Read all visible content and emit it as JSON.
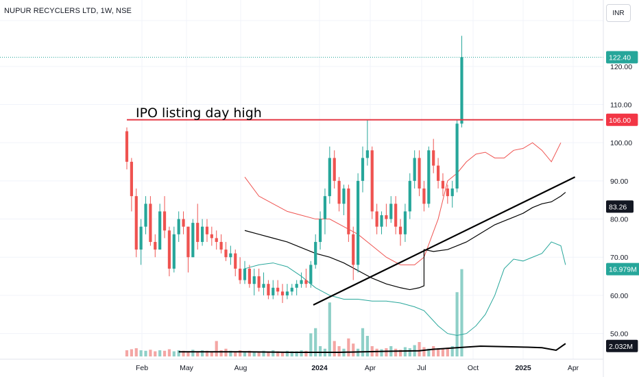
{
  "title": "NUPUR RECYCLERS LTD, 1W, NSE",
  "currency": "INR",
  "annotation": "IPO listing day high",
  "colors": {
    "up": "#26a69a",
    "down": "#ef5350",
    "band_upper": "#ef5350",
    "band_lower": "#26a69a",
    "basis": "#000000",
    "hline": "#e53945",
    "volume_up": "#8fd0c8",
    "volume_down": "#f4a6a4"
  },
  "price_labels": [
    {
      "text": "122.40",
      "value": 122.4,
      "bg": "#26a69a",
      "fg": "#ffffff"
    },
    {
      "text": "106.00",
      "value": 106.0,
      "bg": "#f23645",
      "fg": "#ffffff"
    },
    {
      "text": "83.26",
      "value": 83.26,
      "bg": "#131722",
      "fg": "#ffffff"
    },
    {
      "text": "16.979M",
      "value": 16.979,
      "bg": "#26a69a",
      "fg": "#ffffff",
      "pane": "volume"
    },
    {
      "text": "2.032M",
      "value": 2.032,
      "bg": "#131722",
      "fg": "#ffffff",
      "pane": "volume"
    }
  ],
  "chart_data": {
    "type": "candlestick",
    "interval": "1W",
    "xlabels": [
      "Feb",
      "May",
      "Aug",
      "2024",
      "Apr",
      "Jul",
      "Oct",
      "2025",
      "Apr"
    ],
    "ylabels": [
      "50.00",
      "60.00",
      "70.00",
      "80.00",
      "90.00",
      "100.00",
      "110.00",
      "120.00"
    ],
    "ylim": [
      44,
      132
    ],
    "last_price": 122.4,
    "horizontal_line": 106.0,
    "trendline": [
      [
        0,
        57.5
      ],
      [
        95,
        91
      ]
    ],
    "candles": [
      [
        103,
        104,
        93,
        95
      ],
      [
        95,
        96,
        82,
        86
      ],
      [
        86,
        88,
        70,
        72
      ],
      [
        72,
        80,
        68,
        78
      ],
      [
        78,
        86,
        76,
        84
      ],
      [
        84,
        86,
        73,
        74
      ],
      [
        74,
        76,
        70,
        72
      ],
      [
        72,
        84,
        72,
        82
      ],
      [
        82,
        86,
        75,
        77
      ],
      [
        77,
        78,
        65,
        67
      ],
      [
        67,
        78,
        66,
        76
      ],
      [
        76,
        82,
        74,
        80
      ],
      [
        80,
        82,
        76,
        78
      ],
      [
        78,
        78,
        66,
        70
      ],
      [
        70,
        80,
        70,
        79
      ],
      [
        79,
        84,
        72,
        74
      ],
      [
        74,
        80,
        73,
        78
      ],
      [
        78,
        80,
        74,
        76
      ],
      [
        76,
        78,
        73,
        75
      ],
      [
        75,
        77,
        72,
        74
      ],
      [
        74,
        76,
        71,
        72
      ],
      [
        72,
        74,
        69,
        70
      ],
      [
        70,
        73,
        68,
        71
      ],
      [
        71,
        72,
        65,
        67
      ],
      [
        67,
        70,
        63,
        64
      ],
      [
        64,
        69,
        63,
        67
      ],
      [
        67,
        68,
        62,
        63
      ],
      [
        63,
        67,
        60,
        65
      ],
      [
        65,
        67,
        61,
        62
      ],
      [
        62,
        66,
        60,
        63
      ],
      [
        63,
        64,
        59,
        60
      ],
      [
        60,
        64,
        59,
        62
      ],
      [
        62,
        64,
        60,
        61
      ],
      [
        61,
        63,
        58,
        60
      ],
      [
        60,
        63,
        59,
        61
      ],
      [
        61,
        63,
        60,
        62
      ],
      [
        62,
        64,
        60,
        63
      ],
      [
        63,
        66,
        62,
        64
      ],
      [
        64,
        67,
        62,
        63
      ],
      [
        63,
        69,
        62,
        68
      ],
      [
        68,
        76,
        67,
        74
      ],
      [
        74,
        82,
        72,
        80
      ],
      [
        80,
        88,
        76,
        86
      ],
      [
        86,
        99,
        84,
        96
      ],
      [
        96,
        98,
        88,
        90
      ],
      [
        90,
        91,
        82,
        84
      ],
      [
        84,
        89,
        81,
        88
      ],
      [
        88,
        89,
        74,
        76
      ],
      [
        76,
        78,
        64,
        68
      ],
      [
        68,
        92,
        66,
        90
      ],
      [
        90,
        99,
        87,
        96
      ],
      [
        96,
        106,
        94,
        98
      ],
      [
        98,
        99,
        80,
        82
      ],
      [
        82,
        84,
        76,
        78
      ],
      [
        78,
        82,
        76,
        81
      ],
      [
        81,
        84,
        78,
        80
      ],
      [
        80,
        86,
        79,
        84
      ],
      [
        84,
        86,
        76,
        78
      ],
      [
        78,
        80,
        73,
        76
      ],
      [
        76,
        84,
        74,
        82
      ],
      [
        82,
        92,
        80,
        90
      ],
      [
        90,
        98,
        88,
        96
      ],
      [
        96,
        98,
        86,
        88
      ],
      [
        88,
        90,
        82,
        84
      ],
      [
        84,
        99,
        83,
        98
      ],
      [
        98,
        101,
        92,
        94
      ],
      [
        94,
        96,
        88,
        90
      ],
      [
        90,
        92,
        86,
        88
      ],
      [
        88,
        89,
        84,
        86
      ],
      [
        86,
        90,
        83,
        88
      ],
      [
        88,
        106,
        87,
        105
      ],
      [
        105,
        128,
        104,
        122.4
      ]
    ],
    "bollinger_upper": [
      [
        25,
        91
      ],
      [
        28,
        86
      ],
      [
        31,
        84
      ],
      [
        34,
        82
      ],
      [
        37,
        81
      ],
      [
        40,
        80
      ],
      [
        43,
        80
      ],
      [
        46,
        78
      ],
      [
        49,
        76
      ],
      [
        52,
        73
      ],
      [
        55,
        70
      ],
      [
        58,
        68
      ],
      [
        61,
        68
      ],
      [
        63,
        70
      ],
      [
        66,
        80
      ],
      [
        68,
        90
      ],
      [
        70,
        92
      ],
      [
        72,
        95
      ],
      [
        74,
        97
      ],
      [
        76,
        97.5
      ],
      [
        78,
        96
      ],
      [
        80,
        96
      ],
      [
        82,
        98
      ],
      [
        84,
        98.5
      ],
      [
        86,
        100
      ],
      [
        88,
        98
      ],
      [
        90,
        95
      ],
      [
        92,
        100
      ]
    ],
    "bollinger_basis": [
      [
        25,
        77
      ],
      [
        28,
        76
      ],
      [
        31,
        75
      ],
      [
        34,
        74
      ],
      [
        37,
        72.5
      ],
      [
        40,
        71
      ],
      [
        43,
        70
      ],
      [
        46,
        68.5
      ],
      [
        49,
        66.5
      ],
      [
        52,
        64.5
      ],
      [
        55,
        63
      ],
      [
        58,
        62
      ],
      [
        60,
        61.5
      ],
      [
        62,
        62
      ],
      [
        63,
        62.5
      ],
      [
        63,
        72
      ],
      [
        65,
        71.5
      ],
      [
        68,
        72
      ],
      [
        70,
        73
      ],
      [
        72,
        74
      ],
      [
        74,
        75.5
      ],
      [
        76,
        77
      ],
      [
        78,
        78.5
      ],
      [
        80,
        79.5
      ],
      [
        82,
        80.5
      ],
      [
        84,
        81.5
      ],
      [
        86,
        83
      ],
      [
        88,
        84
      ],
      [
        90,
        84.5
      ],
      [
        92,
        86
      ],
      [
        93,
        87
      ]
    ],
    "bollinger_lower": [
      [
        25,
        67
      ],
      [
        28,
        68
      ],
      [
        31,
        68.5
      ],
      [
        34,
        67.5
      ],
      [
        37,
        65
      ],
      [
        40,
        62
      ],
      [
        43,
        60
      ],
      [
        46,
        59
      ],
      [
        49,
        59
      ],
      [
        52,
        58.5
      ],
      [
        55,
        58.5
      ],
      [
        58,
        58
      ],
      [
        61,
        57
      ],
      [
        63,
        56
      ],
      [
        66,
        52
      ],
      [
        68,
        50
      ],
      [
        70,
        49.5
      ],
      [
        72,
        50
      ],
      [
        74,
        52
      ],
      [
        76,
        55
      ],
      [
        78,
        60
      ],
      [
        80,
        67
      ],
      [
        82,
        69.5
      ],
      [
        84,
        69
      ],
      [
        86,
        70
      ],
      [
        88,
        71
      ],
      [
        90,
        74
      ],
      [
        92,
        73
      ],
      [
        93,
        68
      ]
    ],
    "moving_average_line": [
      [
        0,
        57.5
      ],
      [
        95,
        91
      ]
    ],
    "volume": [
      1.2,
      1.4,
      1.6,
      1.2,
      1.1,
      1.3,
      1.0,
      1.2,
      1.1,
      1.4,
      1.0,
      1.2,
      1.1,
      0.9,
      1.3,
      1.0,
      1.2,
      1.1,
      0.8,
      3.0,
      1.2,
      1.5,
      1.1,
      1.0,
      1.2,
      1.0,
      1.1,
      0.9,
      1.0,
      1.1,
      0.9,
      1.2,
      1.0,
      0.9,
      1.1,
      1.0,
      1.0,
      1.2,
      1.1,
      4.5,
      5.5,
      2.0,
      1.5,
      10.5,
      3.0,
      2.0,
      1.5,
      3.5,
      2.5,
      1.5,
      5.5,
      4.0,
      2.0,
      1.5,
      1.4,
      1.6,
      2.0,
      1.5,
      1.3,
      1.8,
      1.6,
      2.2,
      2.8,
      1.8,
      1.5,
      2.0,
      1.6,
      1.5,
      1.7,
      2.0,
      12.5,
      16.979
    ],
    "volume_ma": [
      [
        11,
        0.9
      ],
      [
        25,
        0.9
      ],
      [
        35,
        0.8
      ],
      [
        45,
        0.8
      ],
      [
        55,
        1.0
      ],
      [
        62,
        1.1
      ],
      [
        65,
        1.4
      ],
      [
        70,
        1.7
      ],
      [
        75,
        2.0
      ],
      [
        80,
        1.9
      ],
      [
        85,
        1.8
      ],
      [
        88,
        1.7
      ],
      [
        91,
        1.2
      ],
      [
        93,
        2.5
      ]
    ],
    "volume_max": 18,
    "volume_ma_last": 2.032
  }
}
